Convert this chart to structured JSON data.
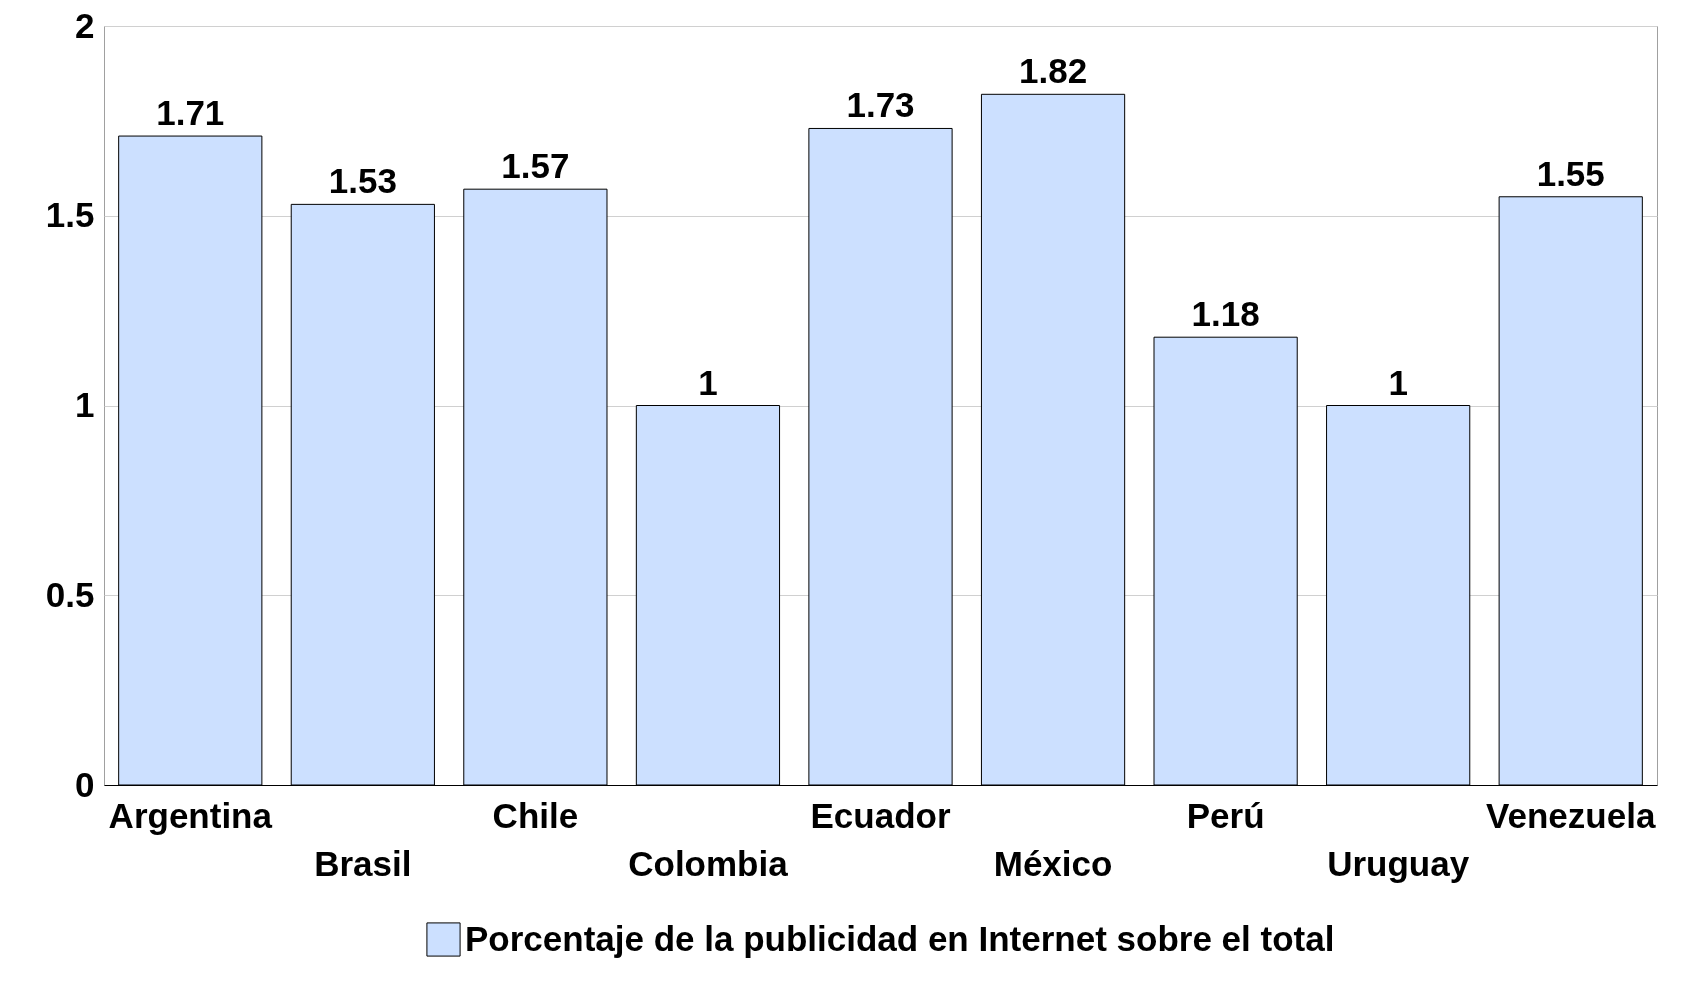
{
  "chart_data": {
    "type": "bar",
    "categories": [
      "Argentina",
      "Brasil",
      "Chile",
      "Colombia",
      "Ecuador",
      "México",
      "Perú",
      "Uruguay",
      "Venezuela"
    ],
    "series": [
      {
        "name": "Porcentaje de la publicidad en Internet sobre el total",
        "color": "#cce0ff",
        "values": [
          1.71,
          1.53,
          1.57,
          1,
          1.73,
          1.82,
          1.18,
          1,
          1.55
        ]
      }
    ],
    "ylim": [
      0,
      2
    ],
    "yticks": [
      0,
      0.5,
      1,
      1.5,
      2
    ],
    "grid": "y",
    "legend": "bottom",
    "data_labels": true
  }
}
